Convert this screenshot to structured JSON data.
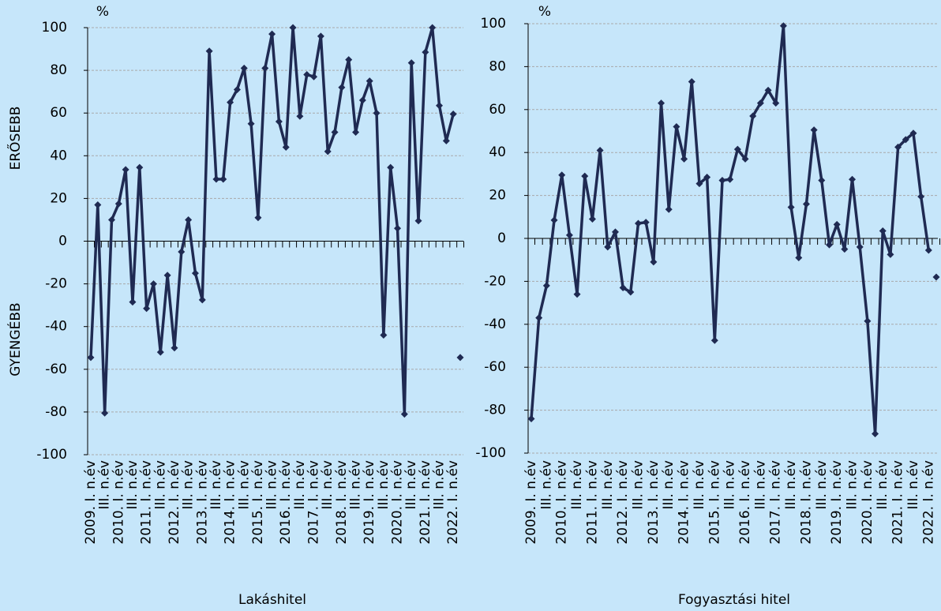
{
  "chart_data": [
    {
      "type": "line",
      "unit_label": "%",
      "y_label_top": "ERŐSEBB",
      "y_label_bottom": "GYENGÉBB",
      "x_label": "Lakáshitel",
      "categories": [
        "2009. I. n.év",
        null,
        "III. n.év",
        null,
        "2010. I. n.év",
        null,
        "III. n.év",
        null,
        "2011. I. n.év",
        null,
        "III. n.év",
        null,
        "2012. I. n.év",
        null,
        "III. n.év",
        null,
        "2013. I. n.év",
        null,
        "III. n.év",
        null,
        "2014. I. n.év",
        null,
        "III. n.év",
        null,
        "2015. I. n.év",
        null,
        "III. n.év",
        null,
        "2016. I. n.év",
        null,
        "III. n.év",
        null,
        "2017. I. n.év",
        null,
        "III. n.év",
        null,
        "2018. I. n.év",
        null,
        "III. n.év",
        null,
        "2019. I. n.év",
        null,
        "III. n.év",
        null,
        "2020. I. n.év",
        null,
        "III. n.év",
        null,
        "2021. I. n.év",
        null,
        "III. n.év",
        null,
        "2022. I. n.év",
        null
      ],
      "series": [
        {
          "color": "#1f2a52",
          "values": [
            -54.5,
            17,
            -80.5,
            10,
            17.5,
            33.5,
            -28.5,
            34.5,
            -31.5,
            -20,
            -52,
            -16,
            -50,
            -5,
            10,
            -15,
            -27.5,
            89,
            29,
            29,
            65,
            71,
            81,
            55,
            11,
            81,
            97,
            56,
            44,
            100,
            58.5,
            78,
            77,
            96,
            42,
            51,
            72,
            85,
            51,
            66,
            75,
            60,
            -44,
            34.5,
            6,
            -81,
            83.5,
            9.5,
            88.5,
            100,
            63.5,
            47,
            59.5,
            null
          ]
        },
        {
          "color": "#1f2a52",
          "values": [
            null,
            null,
            null,
            null,
            null,
            null,
            null,
            null,
            null,
            null,
            null,
            null,
            null,
            null,
            null,
            null,
            null,
            null,
            null,
            null,
            null,
            null,
            null,
            null,
            null,
            null,
            null,
            null,
            null,
            null,
            null,
            null,
            null,
            null,
            null,
            null,
            null,
            null,
            null,
            null,
            null,
            null,
            null,
            null,
            null,
            null,
            null,
            null,
            null,
            null,
            null,
            null,
            null,
            -54.5
          ]
        }
      ],
      "ylim": [
        -100,
        100
      ],
      "yticks": [
        -100,
        -80,
        -60,
        -40,
        -20,
        0,
        20,
        40,
        60,
        80,
        100
      ],
      "grid": true
    },
    {
      "type": "line",
      "unit_label": "%",
      "x_label": "Fogyasztási hitel",
      "categories": [
        "2009. I. n.év",
        null,
        "III. n.év",
        null,
        "2010. I. n.év",
        null,
        "III. n.év",
        null,
        "2011. I. n.év",
        null,
        "III. n.év",
        null,
        "2012. I. n.év",
        null,
        "III. n.év",
        null,
        "2013. I. n.év",
        null,
        "III. n.év",
        null,
        "2014. I. n.év",
        null,
        "III. n.év",
        null,
        "2015. I. n.év",
        null,
        "III. n.év",
        null,
        "2016. I. n.év",
        null,
        "III. n.év",
        null,
        "2017. I. n.év",
        null,
        "III. n.év",
        null,
        "2018. I. n.év",
        null,
        "III. n.év",
        null,
        "2019. I. n.év",
        null,
        "III. n.év",
        null,
        "2020. I. n.év",
        null,
        "III. n.év",
        null,
        "2021. I. n.év",
        null,
        "III. n.év",
        null,
        "2022. I. n.év",
        null
      ],
      "series": [
        {
          "color": "#1f2a52",
          "values": [
            -84,
            -37,
            -22,
            8.5,
            29.5,
            1.5,
            -26,
            29,
            9,
            41,
            -4,
            3,
            -23,
            -25,
            7,
            7.5,
            -11,
            63,
            13.5,
            52,
            37,
            73,
            25.5,
            28.5,
            -47.5,
            27,
            27.5,
            41.5,
            37,
            57,
            63,
            69,
            63,
            99,
            14.5,
            -9,
            16,
            50.5,
            27,
            -3,
            6.5,
            -5,
            27.5,
            -4,
            -38.5,
            -91,
            3.5,
            -7.5,
            42.5,
            46,
            49,
            19.5,
            -5.5,
            null
          ]
        },
        {
          "color": "#1f2a52",
          "values": [
            null,
            null,
            null,
            null,
            null,
            null,
            null,
            null,
            null,
            null,
            null,
            null,
            null,
            null,
            null,
            null,
            null,
            null,
            null,
            null,
            null,
            null,
            null,
            null,
            null,
            null,
            null,
            null,
            null,
            null,
            null,
            null,
            null,
            null,
            null,
            null,
            null,
            null,
            null,
            null,
            null,
            null,
            null,
            null,
            null,
            null,
            null,
            null,
            null,
            null,
            null,
            null,
            null,
            -18
          ]
        }
      ],
      "ylim": [
        -100,
        100
      ],
      "yticks": [
        -100,
        -80,
        -60,
        -40,
        -20,
        0,
        20,
        40,
        60,
        80,
        100
      ],
      "grid": true
    }
  ]
}
